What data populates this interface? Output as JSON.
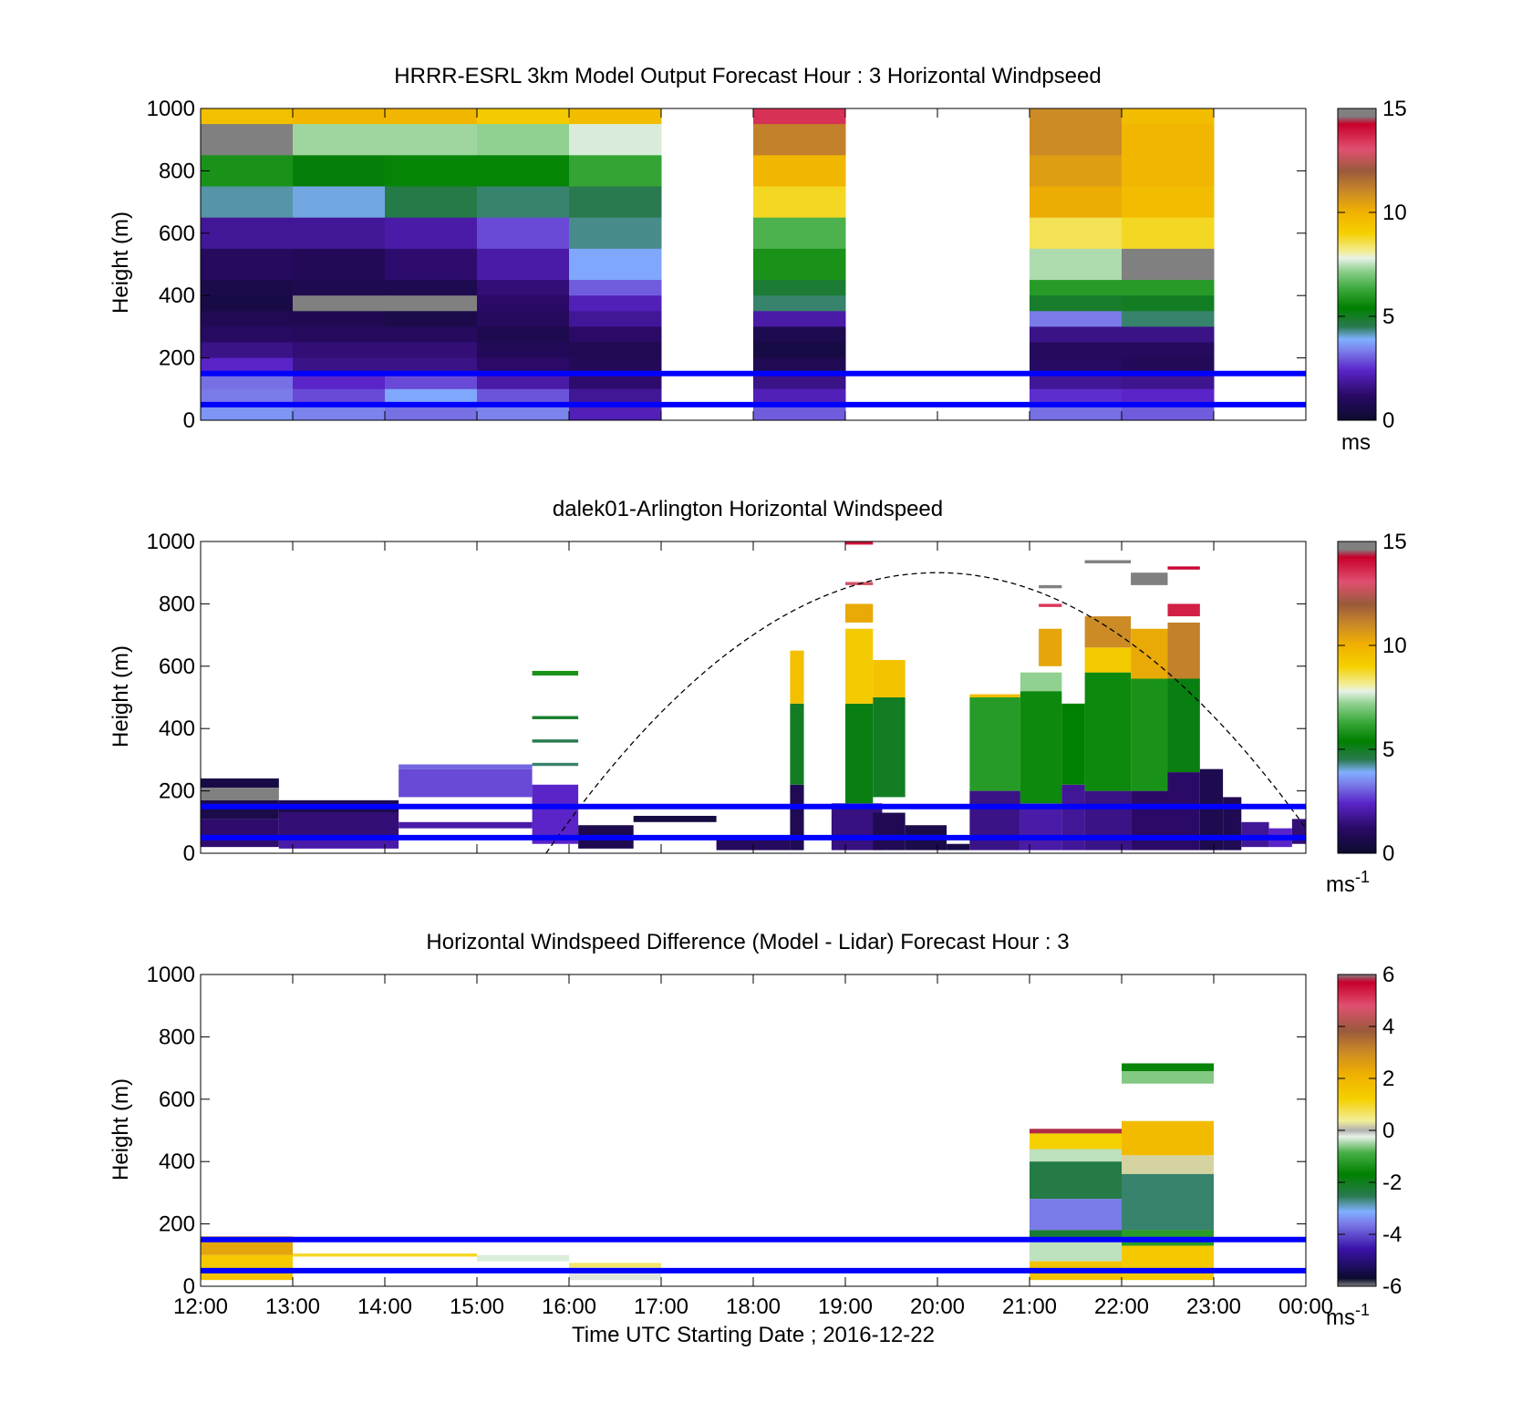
{
  "shared": {
    "xlabel": "Time UTC  Starting Date ; 2016-12-22",
    "xticks": [
      "12:00",
      "13:00",
      "14:00",
      "15:00",
      "16:00",
      "17:00",
      "18:00",
      "19:00",
      "20:00",
      "21:00",
      "22:00",
      "23:00",
      "00:00"
    ],
    "reference_lines_m": [
      150,
      50
    ]
  },
  "chart_data": [
    {
      "type": "heatmap",
      "title": "HRRR-ESRL 3km Model Output   Forecast Hour : 3 Horizontal Windpseed",
      "ylabel": "Height (m)",
      "xlim": [
        12,
        24
      ],
      "ylim": [
        0,
        1000
      ],
      "yticks": [
        "0",
        "200",
        "400",
        "600",
        "800",
        "1000"
      ],
      "colorbar": {
        "min": 0,
        "max": 15,
        "ticks": [
          "0",
          "5",
          "10",
          "15"
        ],
        "unit": "ms",
        "unit_sup": ""
      },
      "x_hours": [
        12,
        13,
        14,
        15,
        16,
        18,
        21,
        22
      ],
      "levels_m": [
        [
          950,
          1000
        ],
        [
          850,
          950
        ],
        [
          750,
          850
        ],
        [
          650,
          750
        ],
        [
          550,
          650
        ],
        [
          450,
          550
        ],
        [
          400,
          450
        ],
        [
          350,
          400
        ],
        [
          300,
          350
        ],
        [
          250,
          300
        ],
        [
          200,
          250
        ],
        [
          150,
          200
        ],
        [
          100,
          150
        ],
        [
          50,
          100
        ],
        [
          0,
          50
        ]
      ],
      "values": [
        [
          9.5,
          9.8,
          9.8,
          9.2,
          9.6,
          null,
          13.5,
          null,
          null,
          11.0,
          9.6
        ],
        [
          7.6,
          7.3,
          7.3,
          7.2,
          7.7,
          null,
          11.2,
          null,
          null,
          11.0,
          9.8
        ],
        [
          5.8,
          5.3,
          5.5,
          5.5,
          6.2,
          null,
          9.8,
          null,
          null,
          10.5,
          9.8
        ],
        [
          4.2,
          4.0,
          4.6,
          4.4,
          4.5,
          null,
          8.8,
          null,
          null,
          10.1,
          9.6
        ],
        [
          1.8,
          1.8,
          2.0,
          2.8,
          4.3,
          null,
          6.5,
          null,
          null,
          8.5,
          8.8
        ],
        [
          1.0,
          0.9,
          1.3,
          2.0,
          3.8,
          null,
          5.8,
          null,
          null,
          7.4,
          7.5
        ],
        [
          0.6,
          0.7,
          0.7,
          1.4,
          3.0,
          null,
          4.8,
          null,
          null,
          6.0,
          6.0
        ],
        [
          0.5,
          7.5,
          7.5,
          1.2,
          2.2,
          null,
          4.4,
          null,
          null,
          4.9,
          5.0
        ],
        [
          0.8,
          0.8,
          0.6,
          1.0,
          1.8,
          null,
          2.0,
          null,
          null,
          3.3,
          4.4
        ],
        [
          1.1,
          1.0,
          1.0,
          0.7,
          1.2,
          null,
          0.7,
          null,
          null,
          1.6,
          1.6
        ],
        [
          1.6,
          1.4,
          1.4,
          0.9,
          0.8,
          null,
          0.5,
          null,
          null,
          1.0,
          1.0
        ],
        [
          2.4,
          1.6,
          1.6,
          1.2,
          0.9,
          null,
          0.8,
          null,
          null,
          1.1,
          0.9
        ],
        [
          3.2,
          2.4,
          2.8,
          2.0,
          1.3,
          null,
          1.6,
          null,
          null,
          1.8,
          1.7
        ],
        [
          3.3,
          2.8,
          3.8,
          2.9,
          1.8,
          null,
          2.2,
          null,
          null,
          2.5,
          2.4
        ],
        [
          3.6,
          3.4,
          3.2,
          3.4,
          2.2,
          null,
          3.0,
          null,
          null,
          3.2,
          3.0
        ]
      ]
    },
    {
      "type": "heatmap",
      "title": "dalek01-Arlington  Horizontal Windspeed",
      "ylabel": "Height (m)",
      "xlim": [
        12,
        24
      ],
      "ylim": [
        0,
        1000
      ],
      "yticks": [
        "0",
        "200",
        "400",
        "600",
        "800",
        "1000"
      ],
      "colorbar": {
        "min": 0,
        "max": 15,
        "ticks": [
          "0",
          "5",
          "10",
          "15"
        ],
        "unit": "ms",
        "unit_sup": "-1"
      },
      "segments": [
        {
          "x0": 12.0,
          "x1": 12.85,
          "y0": 210,
          "y1": 240,
          "v": 0.5
        },
        {
          "x0": 12.0,
          "x1": 12.85,
          "y0": 170,
          "y1": 210,
          "v": 7.6
        },
        {
          "x0": 12.0,
          "x1": 12.85,
          "y0": 110,
          "y1": 170,
          "v": 0.6
        },
        {
          "x0": 12.0,
          "x1": 12.85,
          "y0": 20,
          "y1": 110,
          "v": 1.3
        },
        {
          "x0": 12.85,
          "x1": 14.15,
          "y0": 130,
          "y1": 170,
          "v": 0.7
        },
        {
          "x0": 12.85,
          "x1": 14.15,
          "y0": 50,
          "y1": 130,
          "v": 1.4
        },
        {
          "x0": 12.85,
          "x1": 14.15,
          "y0": 15,
          "y1": 50,
          "v": 2.0
        },
        {
          "x0": 14.15,
          "x1": 15.6,
          "y0": 180,
          "y1": 270,
          "v": 2.8
        },
        {
          "x0": 14.15,
          "x1": 15.6,
          "y0": 270,
          "y1": 285,
          "v": 3.1
        },
        {
          "x0": 14.15,
          "x1": 15.6,
          "y0": 80,
          "y1": 100,
          "v": 2.0
        },
        {
          "x0": 15.6,
          "x1": 16.1,
          "y0": 570,
          "y1": 585,
          "v": 5.8
        },
        {
          "x0": 15.6,
          "x1": 16.1,
          "y0": 430,
          "y1": 440,
          "v": 4.9
        },
        {
          "x0": 15.6,
          "x1": 16.1,
          "y0": 355,
          "y1": 365,
          "v": 4.5
        },
        {
          "x0": 15.6,
          "x1": 16.1,
          "y0": 280,
          "y1": 290,
          "v": 4.4
        },
        {
          "x0": 15.6,
          "x1": 16.1,
          "y0": 30,
          "y1": 220,
          "v": 2.4
        },
        {
          "x0": 16.1,
          "x1": 16.7,
          "y0": 15,
          "y1": 90,
          "v": 0.7
        },
        {
          "x0": 16.7,
          "x1": 17.6,
          "y0": 100,
          "y1": 120,
          "v": 0.4
        },
        {
          "x0": 17.6,
          "x1": 18.4,
          "y0": 10,
          "y1": 50,
          "v": 1.0
        },
        {
          "x0": 18.4,
          "x1": 18.55,
          "y0": 10,
          "y1": 220,
          "v": 0.8
        },
        {
          "x0": 18.4,
          "x1": 18.55,
          "y0": 220,
          "y1": 480,
          "v": 5.0
        },
        {
          "x0": 18.4,
          "x1": 18.55,
          "y0": 480,
          "y1": 650,
          "v": 9.5
        },
        {
          "x0": 18.85,
          "x1": 19.4,
          "y0": 10,
          "y1": 160,
          "v": 1.5
        },
        {
          "x0": 19.0,
          "x1": 19.3,
          "y0": 160,
          "y1": 480,
          "v": 5.2
        },
        {
          "x0": 19.0,
          "x1": 19.3,
          "y0": 480,
          "y1": 720,
          "v": 9.2
        },
        {
          "x0": 19.0,
          "x1": 19.3,
          "y0": 740,
          "y1": 800,
          "v": 10.2
        },
        {
          "x0": 19.0,
          "x1": 19.3,
          "y0": 860,
          "y1": 870,
          "v": 12.8
        },
        {
          "x0": 19.0,
          "x1": 19.3,
          "y0": 990,
          "y1": 1000,
          "v": 14.0
        },
        {
          "x0": 19.3,
          "x1": 19.65,
          "y0": 180,
          "y1": 500,
          "v": 5.0
        },
        {
          "x0": 19.3,
          "x1": 19.65,
          "y0": 500,
          "y1": 620,
          "v": 9.4
        },
        {
          "x0": 19.3,
          "x1": 19.65,
          "y0": 10,
          "y1": 130,
          "v": 0.8
        },
        {
          "x0": 19.65,
          "x1": 20.1,
          "y0": 10,
          "y1": 90,
          "v": 0.6
        },
        {
          "x0": 20.1,
          "x1": 20.35,
          "y0": 10,
          "y1": 30,
          "v": 0.5
        },
        {
          "x0": 20.35,
          "x1": 20.9,
          "y0": 200,
          "y1": 500,
          "v": 6.0
        },
        {
          "x0": 20.35,
          "x1": 20.9,
          "y0": 10,
          "y1": 200,
          "v": 1.6
        },
        {
          "x0": 20.35,
          "x1": 20.9,
          "y0": 500,
          "y1": 510,
          "v": 9.6
        },
        {
          "x0": 20.9,
          "x1": 21.35,
          "y0": 10,
          "y1": 160,
          "v": 2.0
        },
        {
          "x0": 20.9,
          "x1": 21.35,
          "y0": 160,
          "y1": 520,
          "v": 5.6
        },
        {
          "x0": 20.9,
          "x1": 21.35,
          "y0": 520,
          "y1": 580,
          "v": 7.2
        },
        {
          "x0": 21.1,
          "x1": 21.35,
          "y0": 600,
          "y1": 720,
          "v": 10.3
        },
        {
          "x0": 21.1,
          "x1": 21.35,
          "y0": 790,
          "y1": 800,
          "v": 13.4
        },
        {
          "x0": 21.1,
          "x1": 21.35,
          "y0": 850,
          "y1": 860,
          "v": 7.6
        },
        {
          "x0": 21.35,
          "x1": 21.6,
          "y0": 10,
          "y1": 220,
          "v": 1.8
        },
        {
          "x0": 21.35,
          "x1": 21.6,
          "y0": 220,
          "y1": 480,
          "v": 5.4
        },
        {
          "x0": 21.6,
          "x1": 22.1,
          "y0": 10,
          "y1": 200,
          "v": 1.6
        },
        {
          "x0": 21.6,
          "x1": 22.1,
          "y0": 200,
          "y1": 580,
          "v": 5.6
        },
        {
          "x0": 21.6,
          "x1": 22.1,
          "y0": 580,
          "y1": 660,
          "v": 9.2
        },
        {
          "x0": 21.6,
          "x1": 22.1,
          "y0": 660,
          "y1": 760,
          "v": 11.0
        },
        {
          "x0": 21.6,
          "x1": 22.1,
          "y0": 930,
          "y1": 940,
          "v": 7.6
        },
        {
          "x0": 22.1,
          "x1": 22.5,
          "y0": 10,
          "y1": 200,
          "v": 1.2
        },
        {
          "x0": 22.1,
          "x1": 22.5,
          "y0": 200,
          "y1": 560,
          "v": 5.8
        },
        {
          "x0": 22.1,
          "x1": 22.5,
          "y0": 560,
          "y1": 720,
          "v": 10.2
        },
        {
          "x0": 22.1,
          "x1": 22.5,
          "y0": 860,
          "y1": 900,
          "v": 7.6
        },
        {
          "x0": 22.5,
          "x1": 22.85,
          "y0": 10,
          "y1": 260,
          "v": 1.2
        },
        {
          "x0": 22.5,
          "x1": 22.85,
          "y0": 260,
          "y1": 560,
          "v": 5.2
        },
        {
          "x0": 22.5,
          "x1": 22.85,
          "y0": 560,
          "y1": 740,
          "v": 11.2
        },
        {
          "x0": 22.5,
          "x1": 22.85,
          "y0": 760,
          "y1": 800,
          "v": 13.8
        },
        {
          "x0": 22.5,
          "x1": 22.85,
          "y0": 910,
          "y1": 920,
          "v": 14.2
        },
        {
          "x0": 22.85,
          "x1": 23.1,
          "y0": 10,
          "y1": 270,
          "v": 0.7
        },
        {
          "x0": 23.1,
          "x1": 23.3,
          "y0": 10,
          "y1": 180,
          "v": 0.8
        },
        {
          "x0": 23.3,
          "x1": 23.6,
          "y0": 20,
          "y1": 100,
          "v": 1.8
        },
        {
          "x0": 23.6,
          "x1": 23.85,
          "y0": 20,
          "y1": 80,
          "v": 2.4
        },
        {
          "x0": 23.85,
          "x1": 24.0,
          "y0": 30,
          "y1": 110,
          "v": 1.4
        }
      ],
      "dashed_curve": {
        "x0": 15.75,
        "x1": 24.0,
        "peak_x": 20.0,
        "peak_m": 900,
        "start_m": 0,
        "end_m": 80
      }
    },
    {
      "type": "heatmap",
      "title": "Horizontal Windspeed Difference (Model - Lidar) Forecast Hour : 3",
      "ylabel": "Height (m)",
      "xlim": [
        12,
        24
      ],
      "ylim": [
        0,
        1000
      ],
      "yticks": [
        "0",
        "200",
        "400",
        "600",
        "800",
        "1000"
      ],
      "colorbar": {
        "min": -6,
        "max": 6,
        "ticks": [
          "-6",
          "-4",
          "-2",
          "0",
          "2",
          "4",
          "6"
        ],
        "unit": "ms",
        "unit_sup": "-1"
      },
      "segments": [
        {
          "x0": 12.0,
          "x1": 13.0,
          "y0": 100,
          "y1": 160,
          "v": 2.4
        },
        {
          "x0": 12.0,
          "x1": 13.0,
          "y0": 60,
          "y1": 100,
          "v": 1.4
        },
        {
          "x0": 12.0,
          "x1": 13.0,
          "y0": 20,
          "y1": 60,
          "v": 1.6
        },
        {
          "x0": 13.0,
          "x1": 15.0,
          "y0": 95,
          "y1": 105,
          "v": 1.0
        },
        {
          "x0": 15.0,
          "x1": 16.0,
          "y0": 80,
          "y1": 100,
          "v": -0.3
        },
        {
          "x0": 16.0,
          "x1": 17.0,
          "y0": 60,
          "y1": 75,
          "v": 0.6
        },
        {
          "x0": 16.0,
          "x1": 17.0,
          "y0": 20,
          "y1": 60,
          "v": -0.2
        },
        {
          "x0": 21.0,
          "x1": 22.0,
          "y0": 490,
          "y1": 505,
          "v": 5.8
        },
        {
          "x0": 21.0,
          "x1": 22.0,
          "y0": 440,
          "y1": 490,
          "v": 1.2
        },
        {
          "x0": 21.0,
          "x1": 22.0,
          "y0": 400,
          "y1": 440,
          "v": -0.4
        },
        {
          "x0": 21.0,
          "x1": 22.0,
          "y0": 280,
          "y1": 400,
          "v": -2.4
        },
        {
          "x0": 21.0,
          "x1": 22.0,
          "y0": 180,
          "y1": 280,
          "v": -3.6
        },
        {
          "x0": 21.0,
          "x1": 22.0,
          "y0": 150,
          "y1": 180,
          "v": -2.2
        },
        {
          "x0": 21.0,
          "x1": 22.0,
          "y0": 80,
          "y1": 150,
          "v": -0.4
        },
        {
          "x0": 21.0,
          "x1": 22.0,
          "y0": 20,
          "y1": 80,
          "v": 1.6
        },
        {
          "x0": 22.0,
          "x1": 23.0,
          "y0": 690,
          "y1": 715,
          "v": -1.6
        },
        {
          "x0": 22.0,
          "x1": 23.0,
          "y0": 650,
          "y1": 690,
          "v": -0.6
        },
        {
          "x0": 22.0,
          "x1": 23.0,
          "y0": 420,
          "y1": 530,
          "v": 1.8
        },
        {
          "x0": 22.0,
          "x1": 23.0,
          "y0": 360,
          "y1": 420,
          "v": 0.2
        },
        {
          "x0": 22.0,
          "x1": 23.0,
          "y0": 180,
          "y1": 360,
          "v": -2.6
        },
        {
          "x0": 22.0,
          "x1": 23.0,
          "y0": 130,
          "y1": 180,
          "v": -1.2
        },
        {
          "x0": 22.0,
          "x1": 23.0,
          "y0": 20,
          "y1": 130,
          "v": 1.4
        }
      ]
    }
  ]
}
